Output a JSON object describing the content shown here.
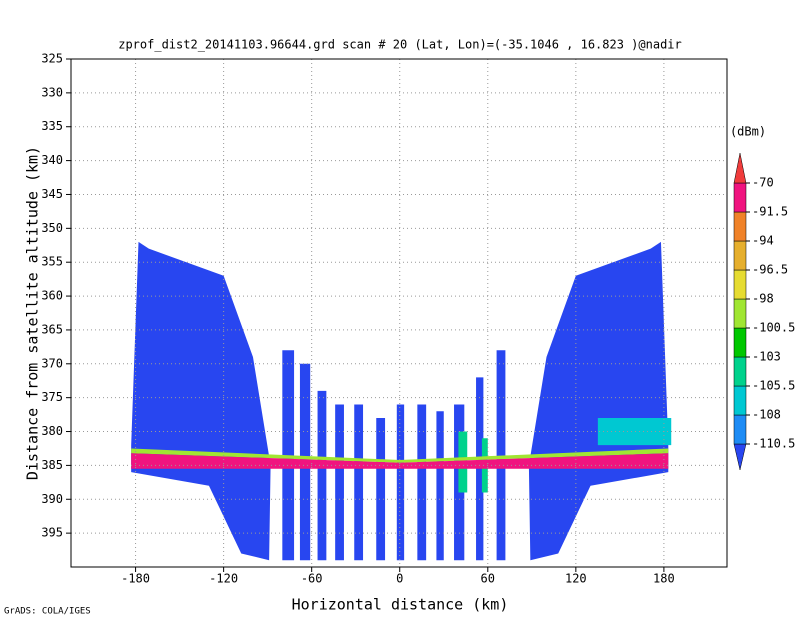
{
  "chart_data": {
    "type": "shaded",
    "title": "zprof_dist2_20141103.96644.grd   scan # 20   (Lat, Lon)=(-35.1046 , 16.823 )@nadir",
    "x_label": "Horizontal distance (km)",
    "y_label": "Distance from satellite altitude (km)",
    "colorbar_title": "(dBm)",
    "credit": "GrADS: COLA/IGES",
    "xlim": [
      -224,
      223
    ],
    "ylim": [
      325,
      400
    ],
    "y_inverted": true,
    "xticks": [
      -180,
      -120,
      -60,
      0,
      60,
      120,
      180
    ],
    "yticks": [
      325,
      330,
      335,
      340,
      345,
      350,
      355,
      360,
      365,
      370,
      375,
      380,
      385,
      390,
      395
    ],
    "grid": true,
    "levels": [
      -110.5,
      -108,
      -105.5,
      -103,
      -100.5,
      -98,
      -96.5,
      -94,
      -91.5,
      -70
    ],
    "colors": [
      "#2846f0",
      "#1e8cf5",
      "#00c8d2",
      "#00d28c",
      "#00c800",
      "#a0e632",
      "#e6dc32",
      "#e6af2d",
      "#f08228",
      "#f0147f",
      "#f03c3c"
    ],
    "regions": [
      {
        "value": -115,
        "x": [
          -183,
          -178,
          -171,
          -120,
          -100,
          -88,
          -89,
          -108,
          -130,
          -183
        ],
        "y": [
          382,
          352,
          353,
          357,
          369,
          385,
          399,
          398,
          388,
          386
        ]
      },
      {
        "value": -115,
        "x": [
          183,
          178,
          171,
          120,
          100,
          88,
          89,
          108,
          130,
          183
        ],
        "y": [
          382,
          352,
          353,
          357,
          369,
          385,
          399,
          398,
          388,
          386
        ]
      },
      {
        "value": -115,
        "x": [
          -80,
          -72,
          -72,
          -80
        ],
        "y": [
          368,
          368,
          399,
          399
        ]
      },
      {
        "value": -115,
        "x": [
          -68,
          -61,
          -61,
          -68
        ],
        "y": [
          370,
          370,
          399,
          399
        ]
      },
      {
        "value": -115,
        "x": [
          -56,
          -50,
          -50,
          -56
        ],
        "y": [
          374,
          374,
          399,
          399
        ]
      },
      {
        "value": -115,
        "x": [
          -44,
          -38,
          -38,
          -44
        ],
        "y": [
          376,
          376,
          399,
          399
        ]
      },
      {
        "value": -115,
        "x": [
          -31,
          -25,
          -25,
          -31
        ],
        "y": [
          376,
          376,
          399,
          399
        ]
      },
      {
        "value": -115,
        "x": [
          -16,
          -10,
          -10,
          -16
        ],
        "y": [
          378,
          378,
          399,
          399
        ]
      },
      {
        "value": -115,
        "x": [
          -2,
          3,
          3,
          -2
        ],
        "y": [
          376,
          376,
          399,
          399
        ]
      },
      {
        "value": -115,
        "x": [
          12,
          18,
          18,
          12
        ],
        "y": [
          376,
          376,
          399,
          399
        ]
      },
      {
        "value": -115,
        "x": [
          25,
          30,
          30,
          25
        ],
        "y": [
          377,
          377,
          399,
          399
        ]
      },
      {
        "value": -115,
        "x": [
          37,
          44,
          44,
          37
        ],
        "y": [
          376,
          376,
          399,
          399
        ]
      },
      {
        "value": -115,
        "x": [
          52,
          57,
          57,
          52
        ],
        "y": [
          372,
          372,
          399,
          399
        ]
      },
      {
        "value": -115,
        "x": [
          66,
          72,
          72,
          66
        ],
        "y": [
          368,
          368,
          399,
          399
        ]
      },
      {
        "value": -107,
        "x": [
          135,
          185,
          185,
          135
        ],
        "y": [
          378,
          378,
          382,
          382
        ]
      },
      {
        "value": -104,
        "x": [
          40,
          46,
          46,
          40
        ],
        "y": [
          380,
          380,
          389,
          389
        ]
      },
      {
        "value": -104,
        "x": [
          56,
          60,
          60,
          56
        ],
        "y": [
          381,
          381,
          389,
          389
        ]
      },
      {
        "value": -99,
        "x": [
          -183,
          0,
          183,
          183,
          0,
          -183
        ],
        "y": [
          382.5,
          384.2,
          382.5,
          383.2,
          384.6,
          383.2
        ]
      },
      {
        "value": -80,
        "x": [
          -183,
          0,
          183,
          183,
          0,
          -183
        ],
        "y": [
          383.2,
          384.6,
          383.2,
          385.5,
          385.5,
          385.5
        ]
      }
    ]
  }
}
